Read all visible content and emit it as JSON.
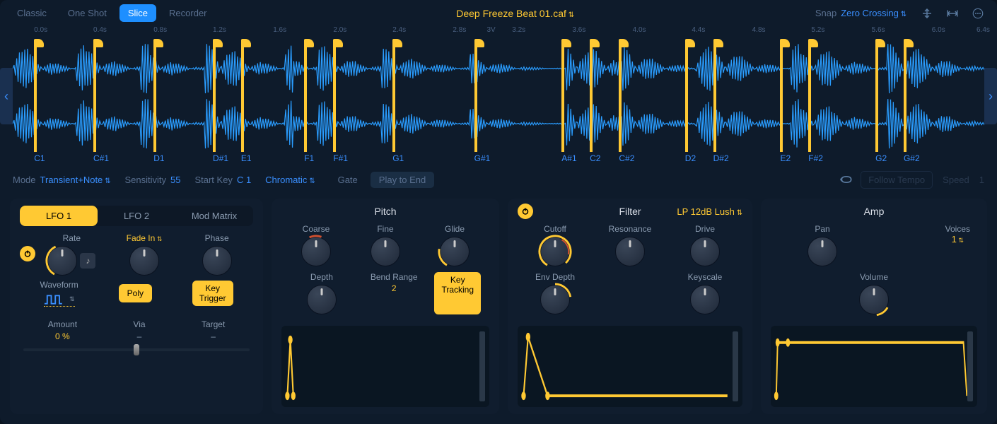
{
  "colors": {
    "accent_yellow": "#ffc933",
    "accent_blue": "#3a8fff",
    "wave_blue": "#2a9dff",
    "bg_dark": "#0e1b2b",
    "panel_bg": "#101d2e"
  },
  "modes": [
    "Classic",
    "One Shot",
    "Slice",
    "Recorder"
  ],
  "active_mode": "Slice",
  "filename": "Deep Freeze Beat 01.caf",
  "snap": {
    "label": "Snap",
    "value": "Zero Crossing"
  },
  "time_marks": [
    {
      "t": "0.0s",
      "pct": 2.2
    },
    {
      "t": "0.4s",
      "pct": 8.3
    },
    {
      "t": "0.8s",
      "pct": 14.5
    },
    {
      "t": "1.2s",
      "pct": 20.6
    },
    {
      "t": "1.6s",
      "pct": 26.8
    },
    {
      "t": "2.0s",
      "pct": 33.0
    },
    {
      "t": "2.4s",
      "pct": 39.1
    },
    {
      "t": "2.8s",
      "pct": 45.3
    },
    {
      "t": "3V",
      "pct": 48.8
    },
    {
      "t": "3.2s",
      "pct": 51.4
    },
    {
      "t": "3.6s",
      "pct": 57.6
    },
    {
      "t": "4.0s",
      "pct": 63.8
    },
    {
      "t": "4.4s",
      "pct": 69.9
    },
    {
      "t": "4.8s",
      "pct": 76.1
    },
    {
      "t": "5.2s",
      "pct": 82.2
    },
    {
      "t": "5.6s",
      "pct": 88.4
    },
    {
      "t": "6.0s",
      "pct": 94.6
    },
    {
      "t": "6.4s",
      "pct": 99.2
    }
  ],
  "slices": [
    {
      "pct": 2.2,
      "note": "C1"
    },
    {
      "pct": 8.3,
      "note": "C#1"
    },
    {
      "pct": 14.5,
      "note": "D1"
    },
    {
      "pct": 20.6,
      "note": "D#1"
    },
    {
      "pct": 23.5,
      "note": "E1"
    },
    {
      "pct": 30.0,
      "note": "F1"
    },
    {
      "pct": 33.0,
      "note": "F#1"
    },
    {
      "pct": 39.1,
      "note": "G1"
    },
    {
      "pct": 47.5,
      "note": "G#1"
    },
    {
      "pct": 56.5,
      "note": "A#1"
    },
    {
      "pct": 59.4,
      "note": "C2"
    },
    {
      "pct": 62.4,
      "note": "C#2"
    },
    {
      "pct": 69.2,
      "note": "D2"
    },
    {
      "pct": 72.1,
      "note": "D#2"
    },
    {
      "pct": 79.0,
      "note": "E2"
    },
    {
      "pct": 81.9,
      "note": "F#2"
    },
    {
      "pct": 88.8,
      "note": "G2"
    },
    {
      "pct": 91.7,
      "note": "G#2"
    }
  ],
  "wave_envelope": [
    1.0,
    0.8,
    0.6,
    0.4,
    0.3,
    0.2,
    0.15,
    0.1,
    1.0,
    0.7,
    0.5,
    0.4,
    0.3,
    0.2,
    0.15,
    0.1,
    1.0,
    0.6,
    0.4,
    0.3,
    0.2,
    0.15,
    0.1,
    0.05,
    1.0,
    0.9,
    0.9,
    0.7,
    0.5,
    0.4,
    0.3,
    0.2,
    0.15,
    0.1,
    1.0,
    0.3,
    0.2,
    0.1,
    0.9,
    0.7,
    0.5,
    0.4,
    0.3,
    0.2,
    0.15,
    0.1,
    0.8,
    0.6,
    0.5,
    0.4,
    0.3,
    0.25,
    0.2,
    0.15,
    0.1,
    0.1,
    0.05,
    0.6,
    0.4,
    0.3,
    0.2,
    0.15,
    0.1,
    0.1,
    0.05,
    0.05,
    0.05,
    0.02,
    0.02,
    1.0,
    0.9,
    0.7,
    0.8,
    0.6,
    0.5,
    0.3,
    0.9,
    0.7,
    0.5,
    0.4,
    0.3,
    0.2,
    0.15,
    0.1,
    0.05,
    1.0,
    0.9,
    0.7,
    0.8,
    0.6,
    0.5,
    0.4,
    0.3,
    0.2,
    0.15,
    0.1,
    0.05,
    1.0,
    0.6,
    0.4,
    0.9,
    0.7,
    0.5,
    0.4,
    0.3,
    0.2,
    0.15,
    0.1,
    0.05,
    1.0,
    0.9,
    0.7,
    0.8,
    0.6,
    0.5,
    0.4,
    0.3,
    0.2,
    0.15,
    0.1,
    0.05,
    0.05
  ],
  "params": {
    "mode_label": "Mode",
    "mode_value": "Transient+Note",
    "sensitivity_label": "Sensitivity",
    "sensitivity_value": "55",
    "startkey_label": "Start Key",
    "startkey_value": "C 1",
    "chromatic": "Chromatic",
    "gate": "Gate",
    "play_to_end": "Play to End",
    "follow_tempo": "Follow Tempo",
    "speed_label": "Speed",
    "speed_value": "1"
  },
  "lfo": {
    "tabs": [
      "LFO 1",
      "LFO 2",
      "Mod Matrix"
    ],
    "active_tab": "LFO 1",
    "rate": "Rate",
    "fade_in": "Fade In",
    "phase": "Phase",
    "waveform": "Waveform",
    "poly": "Poly",
    "key_trigger": "Key\nTrigger",
    "amount_label": "Amount",
    "amount_value": "0 %",
    "via_label": "Via",
    "via_value": "–",
    "target_label": "Target",
    "target_value": "–"
  },
  "pitch": {
    "title": "Pitch",
    "coarse": "Coarse",
    "fine": "Fine",
    "glide": "Glide",
    "depth": "Depth",
    "bend_range_label": "Bend Range",
    "bend_range_value": "2",
    "key_tracking": "Key\nTracking"
  },
  "filter": {
    "title": "Filter",
    "type": "LP 12dB Lush",
    "cutoff": "Cutoff",
    "resonance": "Resonance",
    "drive": "Drive",
    "env_depth": "Env Depth",
    "keyscale": "Keyscale"
  },
  "amp": {
    "title": "Amp",
    "pan": "Pan",
    "voices_label": "Voices",
    "voices_value": "1",
    "volume": "Volume"
  }
}
